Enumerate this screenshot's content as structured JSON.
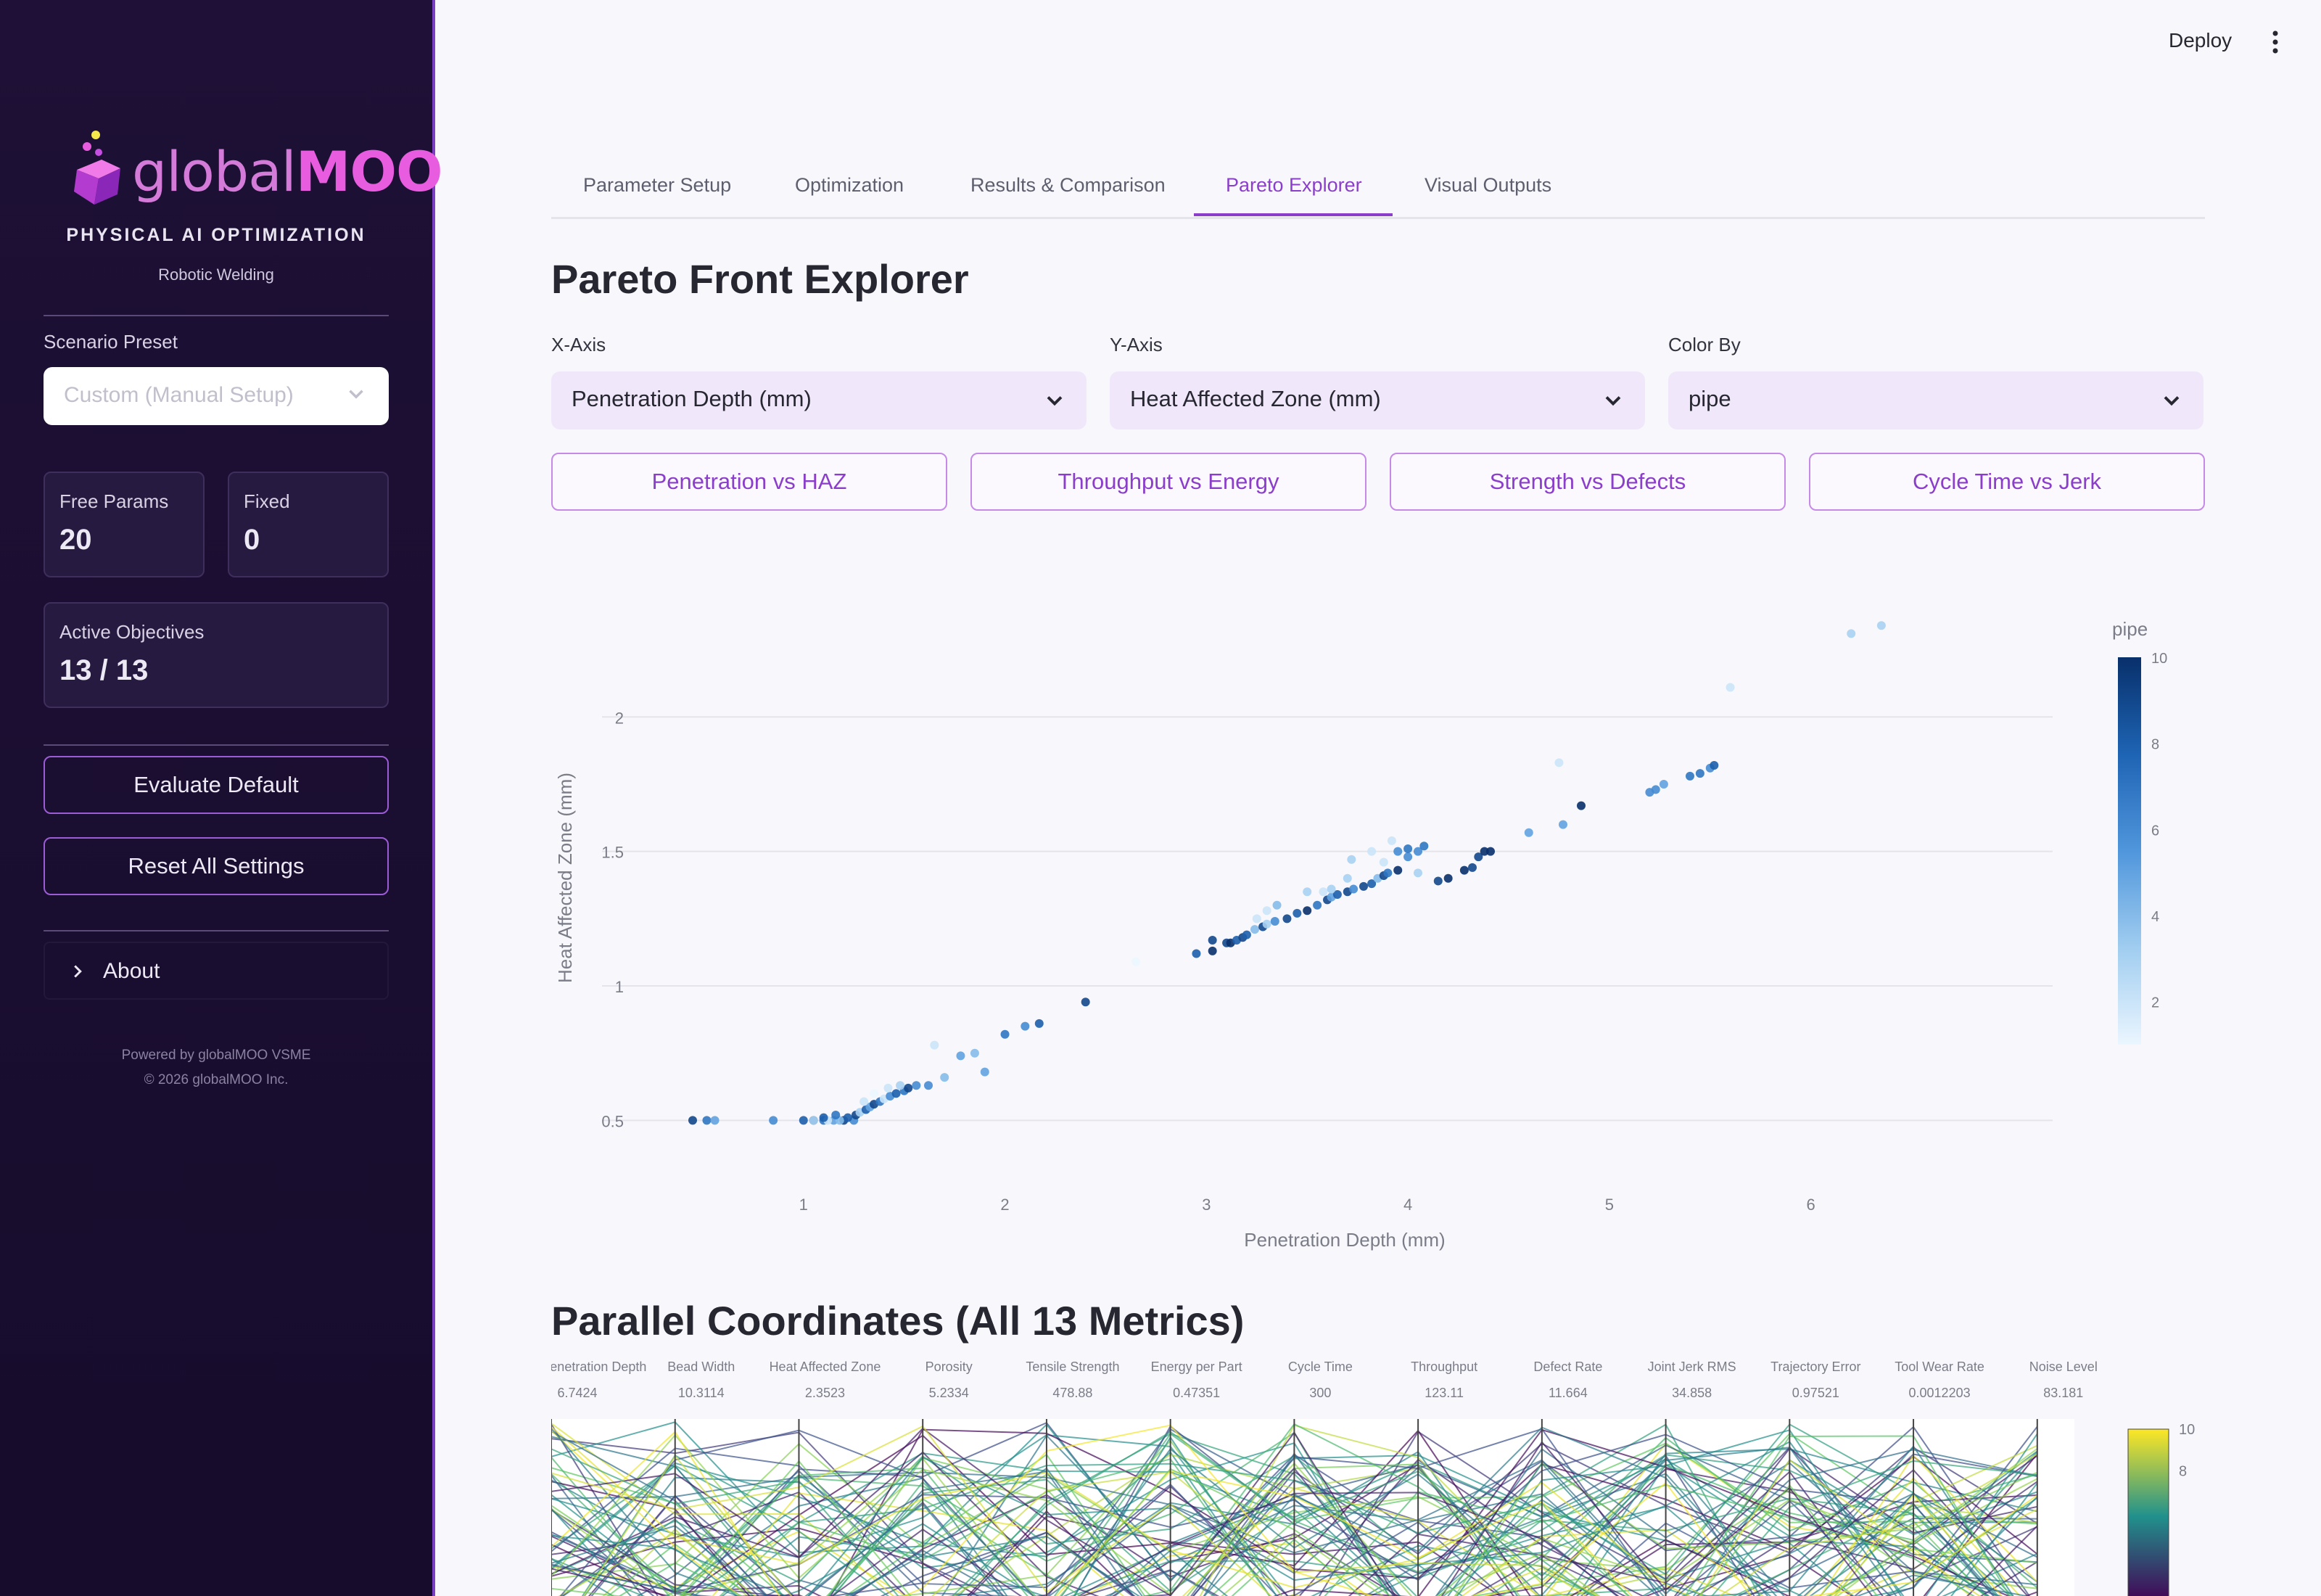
{
  "sidebar": {
    "brand_light": "global",
    "brand_bold": "MOO",
    "tagline": "PHYSICAL AI OPTIMIZATION",
    "subtitle": "Robotic Welding",
    "preset_label": "Scenario Preset",
    "preset_value": "Custom (Manual Setup)",
    "free_params_label": "Free Params",
    "free_params_value": "20",
    "fixed_label": "Fixed",
    "fixed_value": "0",
    "objectives_label": "Active Objectives",
    "objectives_value": "13 / 13",
    "evaluate_button": "Evaluate Default",
    "reset_button": "Reset All Settings",
    "about_label": "About",
    "footer_line1": "Powered by globalMOO VSME",
    "footer_line2": "© 2026 globalMOO Inc."
  },
  "header": {
    "deploy_label": "Deploy",
    "menu_icon": "kebab-menu-icon"
  },
  "tabs": [
    {
      "label": "Parameter Setup",
      "active": false
    },
    {
      "label": "Optimization",
      "active": false
    },
    {
      "label": "Results & Comparison",
      "active": false
    },
    {
      "label": "Pareto Explorer",
      "active": true
    },
    {
      "label": "Visual Outputs",
      "active": false
    }
  ],
  "main": {
    "title": "Pareto Front Explorer",
    "x_axis_label": "X-Axis",
    "x_axis_value": "Penetration Depth (mm)",
    "y_axis_label": "Y-Axis",
    "y_axis_value": "Heat Affected Zone (mm)",
    "color_label": "Color By",
    "color_value": "pipe",
    "presets": [
      "Penetration vs HAZ",
      "Throughput vs Energy",
      "Strength vs Defects",
      "Cycle Time vs Jerk"
    ],
    "parallel_title": "Parallel Coordinates (All 13 Metrics)"
  },
  "colors": {
    "accent": "#8a3ec9",
    "sidebar_bg": "#1e1036",
    "select_bg": "#f0e8fa"
  },
  "chart_data": [
    {
      "type": "scatter",
      "xlabel": "Penetration Depth (mm)",
      "ylabel": "Heat Affected Zone (mm)",
      "xlim": [
        0,
        7.2
      ],
      "ylim": [
        0.35,
        2.4
      ],
      "xticks": [
        1,
        2,
        3,
        4,
        5,
        6
      ],
      "yticks": [
        0.5,
        1,
        1.5,
        2
      ],
      "grid": true,
      "colorbar_title": "pipe",
      "colorbar_ticks": [
        2,
        4,
        6,
        8,
        10
      ],
      "colorscale": "blues",
      "points": [
        [
          0.45,
          0.5,
          9
        ],
        [
          0.52,
          0.5,
          7
        ],
        [
          0.56,
          0.5,
          5
        ],
        [
          0.85,
          0.5,
          6
        ],
        [
          1.0,
          0.5,
          8
        ],
        [
          1.05,
          0.5,
          9
        ],
        [
          1.1,
          0.5,
          7
        ],
        [
          1.15,
          0.5,
          5
        ],
        [
          1.2,
          0.5,
          9
        ],
        [
          1.25,
          0.5,
          6
        ],
        [
          1.05,
          0.5,
          3
        ],
        [
          1.12,
          0.5,
          2
        ],
        [
          1.18,
          0.5,
          4
        ],
        [
          1.22,
          0.51,
          8
        ],
        [
          1.26,
          0.52,
          9
        ],
        [
          1.28,
          0.53,
          3
        ],
        [
          1.31,
          0.54,
          8
        ],
        [
          1.33,
          0.55,
          5
        ],
        [
          1.35,
          0.56,
          9
        ],
        [
          1.38,
          0.57,
          7
        ],
        [
          1.4,
          0.58,
          2
        ],
        [
          1.43,
          0.59,
          6
        ],
        [
          1.46,
          0.6,
          8
        ],
        [
          1.5,
          0.61,
          7
        ],
        [
          1.52,
          0.62,
          9
        ],
        [
          1.56,
          0.63,
          6
        ],
        [
          1.3,
          0.57,
          2
        ],
        [
          1.35,
          0.6,
          1
        ],
        [
          1.42,
          0.62,
          2
        ],
        [
          1.48,
          0.63,
          3
        ],
        [
          1.1,
          0.51,
          8
        ],
        [
          1.16,
          0.52,
          7
        ],
        [
          1.62,
          0.63,
          6
        ],
        [
          1.9,
          0.68,
          5
        ],
        [
          1.7,
          0.66,
          4
        ],
        [
          1.65,
          0.78,
          2
        ],
        [
          1.78,
          0.74,
          5
        ],
        [
          1.85,
          0.75,
          4
        ],
        [
          2.0,
          0.82,
          7
        ],
        [
          2.1,
          0.85,
          6
        ],
        [
          2.17,
          0.86,
          8
        ],
        [
          2.4,
          0.94,
          9
        ],
        [
          2.65,
          1.09,
          1
        ],
        [
          2.95,
          1.12,
          8
        ],
        [
          3.03,
          1.13,
          10
        ],
        [
          3.03,
          1.17,
          9
        ],
        [
          3.1,
          1.16,
          9
        ],
        [
          3.12,
          1.16,
          10
        ],
        [
          3.15,
          1.17,
          8
        ],
        [
          3.18,
          1.18,
          9
        ],
        [
          3.2,
          1.19,
          8
        ],
        [
          3.24,
          1.21,
          4
        ],
        [
          3.28,
          1.22,
          9
        ],
        [
          3.3,
          1.23,
          3
        ],
        [
          3.34,
          1.24,
          6
        ],
        [
          3.4,
          1.25,
          9
        ],
        [
          3.45,
          1.27,
          8
        ],
        [
          3.5,
          1.28,
          10
        ],
        [
          3.55,
          1.3,
          7
        ],
        [
          3.6,
          1.32,
          9
        ],
        [
          3.62,
          1.33,
          5
        ],
        [
          3.65,
          1.34,
          8
        ],
        [
          3.7,
          1.35,
          9
        ],
        [
          3.73,
          1.36,
          6
        ],
        [
          3.78,
          1.37,
          9
        ],
        [
          3.82,
          1.38,
          8
        ],
        [
          3.85,
          1.4,
          4
        ],
        [
          3.88,
          1.41,
          9
        ],
        [
          3.9,
          1.42,
          7
        ],
        [
          3.95,
          1.43,
          10
        ],
        [
          3.7,
          1.4,
          3
        ],
        [
          3.72,
          1.47,
          3
        ],
        [
          3.82,
          1.5,
          2
        ],
        [
          3.88,
          1.46,
          2
        ],
        [
          4.05,
          1.42,
          3
        ],
        [
          3.92,
          1.54,
          2
        ],
        [
          3.95,
          1.5,
          6
        ],
        [
          4.0,
          1.48,
          6
        ],
        [
          4.05,
          1.5,
          6
        ],
        [
          4.0,
          1.51,
          7
        ],
        [
          4.08,
          1.52,
          7
        ],
        [
          4.15,
          1.39,
          9
        ],
        [
          4.2,
          1.4,
          10
        ],
        [
          4.28,
          1.43,
          10
        ],
        [
          4.32,
          1.44,
          9
        ],
        [
          4.35,
          1.48,
          9
        ],
        [
          4.38,
          1.5,
          10
        ],
        [
          4.41,
          1.5,
          10
        ],
        [
          3.5,
          1.35,
          3
        ],
        [
          3.3,
          1.28,
          2
        ],
        [
          3.35,
          1.3,
          4
        ],
        [
          3.58,
          1.35,
          2
        ],
        [
          3.62,
          1.36,
          3
        ],
        [
          3.25,
          1.25,
          2
        ],
        [
          4.6,
          1.57,
          5
        ],
        [
          4.75,
          1.83,
          2
        ],
        [
          4.77,
          1.6,
          5
        ],
        [
          4.86,
          1.67,
          10
        ],
        [
          5.2,
          1.72,
          6
        ],
        [
          5.23,
          1.73,
          6
        ],
        [
          5.27,
          1.75,
          5
        ],
        [
          5.4,
          1.78,
          7
        ],
        [
          5.45,
          1.79,
          7
        ],
        [
          5.5,
          1.81,
          6
        ],
        [
          5.52,
          1.82,
          8
        ],
        [
          5.6,
          2.11,
          2
        ],
        [
          6.2,
          2.31,
          3
        ],
        [
          6.35,
          2.34,
          3
        ]
      ]
    },
    {
      "type": "parallel",
      "title": "Parallel Coordinates (All 13 Metrics)",
      "axes": [
        {
          "name": "Weld Penetration Depth",
          "max": "6.7424"
        },
        {
          "name": "Bead Width",
          "max": "10.3114"
        },
        {
          "name": "Heat Affected Zone",
          "max": "2.3523"
        },
        {
          "name": "Porosity",
          "max": "5.2334"
        },
        {
          "name": "Tensile Strength",
          "max": "478.88"
        },
        {
          "name": "Energy per Part",
          "max": "0.47351"
        },
        {
          "name": "Cycle Time",
          "max": "300"
        },
        {
          "name": "Throughput",
          "max": "123.11"
        },
        {
          "name": "Defect Rate",
          "max": "11.664"
        },
        {
          "name": "Joint Jerk RMS",
          "max": "34.858"
        },
        {
          "name": "Trajectory Error",
          "max": "0.97521"
        },
        {
          "name": "Tool Wear Rate",
          "max": "0.0012203"
        },
        {
          "name": "Noise Level",
          "max": "83.181"
        }
      ],
      "colorbar_ticks": [
        8,
        10
      ],
      "colorscale": "viridis"
    }
  ]
}
